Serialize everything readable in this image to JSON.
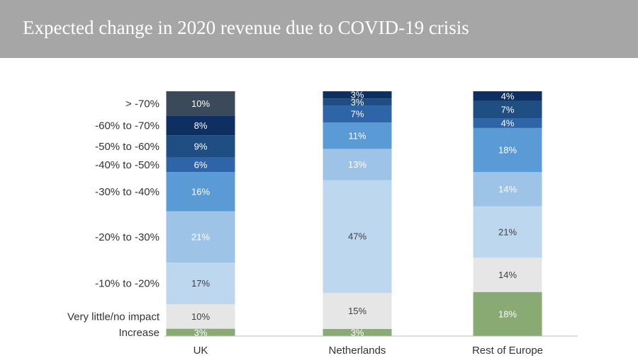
{
  "title": "Expected change in 2020 revenue due to COVID-19 crisis",
  "chart_data": {
    "type": "bar",
    "stacked": true,
    "unit": "%",
    "categories": [
      "UK",
      "Netherlands",
      "Rest of Europe"
    ],
    "segments": [
      "Increase",
      "Very little/no impact",
      "-10% to -20%",
      "-20% to -30%",
      "-30% to -40%",
      "-40% to -50%",
      "-50% to -60%",
      "-60% to -70%",
      "> -70%"
    ],
    "values": {
      "UK": [
        3,
        10,
        17,
        21,
        16,
        6,
        9,
        8,
        10
      ],
      "Netherlands": [
        3,
        15,
        47,
        13,
        11,
        7,
        3,
        3,
        0
      ],
      "Rest of Europe": [
        18,
        14,
        21,
        14,
        18,
        4,
        7,
        4,
        0
      ]
    },
    "colors": [
      "#8aaa74",
      "#e6e6e6",
      "#bdd7ee",
      "#9dc3e6",
      "#5b9bd5",
      "#2e64a8",
      "#1f4e82",
      "#0d2f62",
      "#3b4a5a"
    ],
    "label_colors": [
      "#ffffff",
      "#404040",
      "#404040",
      "#ffffff",
      "#ffffff",
      "#ffffff",
      "#ffffff",
      "#ffffff",
      "#ffffff"
    ]
  }
}
